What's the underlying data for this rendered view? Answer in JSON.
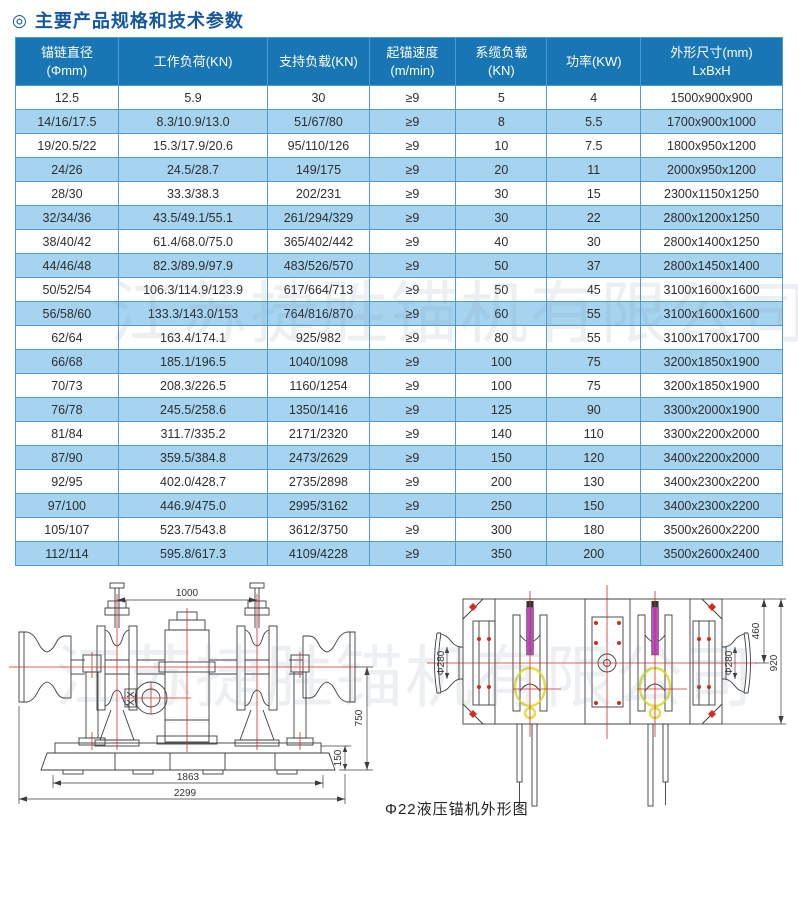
{
  "header": {
    "icon": "◎",
    "title": "主要产品规格和技术参数"
  },
  "watermark": {
    "text": "江苏捷胜锚机有限公司"
  },
  "table": {
    "headers": [
      "锚链直径\n(Φmm)",
      "工作负荷(KN)",
      "支持负载(KN)",
      "起锚速度\n(m/min)",
      "系缆负载\n(KN)",
      "功率(KW)",
      "外形尺寸(mm)\nLxBxH"
    ],
    "rows": [
      [
        "12.5",
        "5.9",
        "30",
        "≥9",
        "5",
        "4",
        "1500x900x900"
      ],
      [
        "14/16/17.5",
        "8.3/10.9/13.0",
        "51/67/80",
        "≥9",
        "8",
        "5.5",
        "1700x900x1000"
      ],
      [
        "19/20.5/22",
        "15.3/17.9/20.6",
        "95/110/126",
        "≥9",
        "10",
        "7.5",
        "1800x950x1200"
      ],
      [
        "24/26",
        "24.5/28.7",
        "149/175",
        "≥9",
        "20",
        "11",
        "2000x950x1200"
      ],
      [
        "28/30",
        "33.3/38.3",
        "202/231",
        "≥9",
        "30",
        "15",
        "2300x1150x1250"
      ],
      [
        "32/34/36",
        "43.5/49.1/55.1",
        "261/294/329",
        "≥9",
        "30",
        "22",
        "2800x1200x1250"
      ],
      [
        "38/40/42",
        "61.4/68.0/75.0",
        "365/402/442",
        "≥9",
        "40",
        "30",
        "2800x1400x1250"
      ],
      [
        "44/46/48",
        "82.3/89.9/97.9",
        "483/526/570",
        "≥9",
        "50",
        "37",
        "2800x1450x1400"
      ],
      [
        "50/52/54",
        "106.3/114.9/123.9",
        "617/664/713",
        "≥9",
        "50",
        "45",
        "3100x1600x1600"
      ],
      [
        "56/58/60",
        "133.3/143.0/153",
        "764/816/870",
        "≥9",
        "60",
        "55",
        "3100x1600x1600"
      ],
      [
        "62/64",
        "163.4/174.1",
        "925/982",
        "≥9",
        "80",
        "55",
        "3100x1700x1700"
      ],
      [
        "66/68",
        "185.1/196.5",
        "1040/1098",
        "≥9",
        "100",
        "75",
        "3200x1850x1900"
      ],
      [
        "70/73",
        "208.3/226.5",
        "1160/1254",
        "≥9",
        "100",
        "75",
        "3200x1850x1900"
      ],
      [
        "76/78",
        "245.5/258.6",
        "1350/1416",
        "≥9",
        "125",
        "90",
        "3300x2000x1900"
      ],
      [
        "81/84",
        "311.7/335.2",
        "2171/2320",
        "≥9",
        "140",
        "110",
        "3300x2200x2000"
      ],
      [
        "87/90",
        "359.5/384.8",
        "2473/2629",
        "≥9",
        "150",
        "120",
        "3400x2200x2000"
      ],
      [
        "92/95",
        "402.0/428.7",
        "2735/2898",
        "≥9",
        "200",
        "130",
        "3400x2300x2200"
      ],
      [
        "97/100",
        "446.9/475.0",
        "2995/3162",
        "≥9",
        "250",
        "150",
        "3400x2300x2200"
      ],
      [
        "105/107",
        "523.7/543.8",
        "3612/3750",
        "≥9",
        "300",
        "180",
        "3500x2600x2200"
      ],
      [
        "112/114",
        "595.8/617.3",
        "4109/4228",
        "≥9",
        "350",
        "200",
        "3500x2600x2400"
      ]
    ]
  },
  "drawings": {
    "caption": "Φ22液压锚机外形图",
    "front_view": {
      "dim_top_width": "1000",
      "dim_height": "750",
      "dim_base_height": "150",
      "dim_inner_width": "1863",
      "dim_total_width": "2299"
    },
    "top_view": {
      "dim_left_drum": "Φ280",
      "dim_right_drum": "Φ280",
      "dim_half_height": "460",
      "dim_total_height": "920"
    }
  },
  "colors": {
    "title": "#14579e",
    "header_bg": "#1976b5",
    "row_alt": "#a6d3ef",
    "grid_border": "#4a9cd2",
    "centerline_red": "#d42a20",
    "highlight_yellow": "#ddd62a",
    "brake_magenta": "#b24ec6"
  }
}
